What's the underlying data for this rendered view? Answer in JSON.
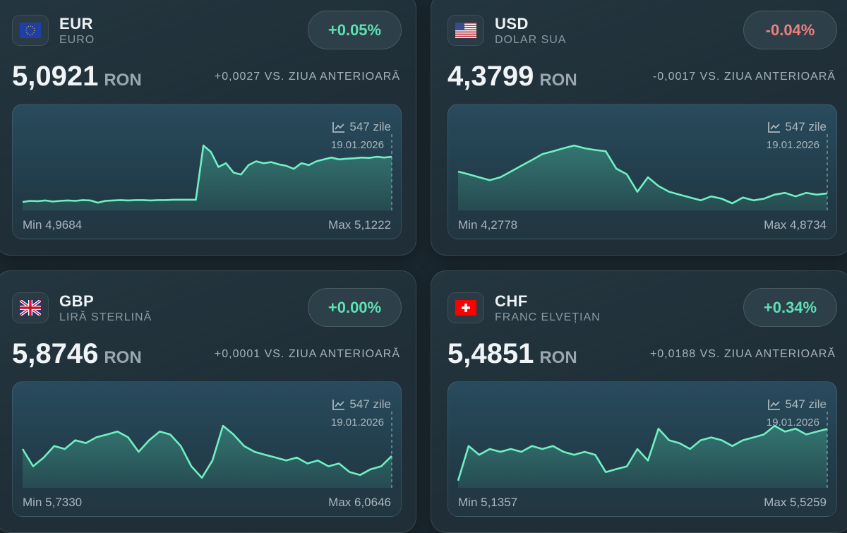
{
  "cards": [
    {
      "code": "EUR",
      "name": "Euro",
      "flag": "eu-flag",
      "change_pct": "+0.05%",
      "trend": "up",
      "price": "5,0921",
      "currency": "RON",
      "delta": "+0,0027 VS. ZIUA ANTERIOARĂ",
      "days": "547 zile",
      "date": "19.01.2026",
      "min": "Min 4,9684",
      "max": "Max 5,1222"
    },
    {
      "code": "USD",
      "name": "Dolar SUA",
      "flag": "us-flag",
      "change_pct": "-0.04%",
      "trend": "down",
      "price": "4,3799",
      "currency": "RON",
      "delta": "-0,0017 VS. ZIUA ANTERIOARĂ",
      "days": "547 zile",
      "date": "19.01.2026",
      "min": "Min 4,2778",
      "max": "Max 4,8734"
    },
    {
      "code": "GBP",
      "name": "Liră sterlină",
      "flag": "uk-flag",
      "change_pct": "+0.00%",
      "trend": "up",
      "price": "5,8746",
      "currency": "RON",
      "delta": "+0,0001 VS. ZIUA ANTERIOARĂ",
      "days": "547 zile",
      "date": "19.01.2026",
      "min": "Min 5,7330",
      "max": "Max 6,0646"
    },
    {
      "code": "CHF",
      "name": "Franc elvețian",
      "flag": "ch-flag",
      "change_pct": "+0.34%",
      "trend": "up",
      "price": "5,4851",
      "currency": "RON",
      "delta": "+0,0188 VS. ZIUA ANTERIOARĂ",
      "days": "547 zile",
      "date": "19.01.2026",
      "min": "Min 5,1357",
      "max": "Max 5,5259"
    }
  ],
  "colors": {
    "up": "#5ee0b5",
    "down": "#f07f7f",
    "line": "#6ff0c4"
  },
  "chart_data": [
    {
      "type": "area",
      "series": [
        {
          "values": [
            4.972,
            4.975,
            4.974,
            4.976,
            4.973,
            4.975,
            4.976,
            4.975,
            4.977,
            4.976,
            4.97,
            4.975,
            4.976,
            4.977,
            4.976,
            4.977,
            4.977,
            4.976,
            4.977,
            4.977,
            4.978,
            4.978,
            4.978,
            4.978,
            5.122,
            5.105,
            5.065,
            5.075,
            5.05,
            5.045,
            5.07,
            5.08,
            5.075,
            5.078,
            5.072,
            5.068,
            5.06,
            5.075,
            5.07,
            5.08,
            5.085,
            5.09,
            5.085,
            5.087,
            5.088,
            5.09,
            5.089,
            5.092,
            5.09,
            5.092
          ]
        }
      ],
      "ylim": [
        4.9684,
        5.1222
      ]
    },
    {
      "type": "area",
      "series": [
        {
          "values": [
            4.605,
            4.576,
            4.546,
            4.516,
            4.546,
            4.605,
            4.665,
            4.724,
            4.784,
            4.814,
            4.844,
            4.873,
            4.844,
            4.826,
            4.814,
            4.635,
            4.576,
            4.397,
            4.546,
            4.456,
            4.397,
            4.367,
            4.337,
            4.308,
            4.349,
            4.325,
            4.278,
            4.337,
            4.308,
            4.325,
            4.367,
            4.385,
            4.349,
            4.385,
            4.367,
            4.38
          ]
        }
      ],
      "ylim": [
        4.2778,
        4.8734
      ]
    },
    {
      "type": "area",
      "series": [
        {
          "values": [
            5.915,
            5.816,
            5.866,
            5.932,
            5.915,
            5.965,
            5.949,
            5.982,
            5.998,
            6.015,
            5.982,
            5.899,
            5.965,
            6.015,
            5.998,
            5.932,
            5.816,
            5.75,
            5.849,
            6.048,
            5.998,
            5.932,
            5.899,
            5.882,
            5.866,
            5.849,
            5.866,
            5.832,
            5.849,
            5.816,
            5.832,
            5.783,
            5.766,
            5.799,
            5.816,
            5.875
          ]
        }
      ],
      "ylim": [
        5.733,
        6.0646
      ]
    },
    {
      "type": "area",
      "series": [
        {
          "values": [
            5.136,
            5.37,
            5.311,
            5.35,
            5.331,
            5.35,
            5.331,
            5.37,
            5.35,
            5.37,
            5.331,
            5.311,
            5.331,
            5.311,
            5.194,
            5.214,
            5.233,
            5.35,
            5.272,
            5.487,
            5.409,
            5.389,
            5.35,
            5.409,
            5.428,
            5.409,
            5.37,
            5.409,
            5.428,
            5.448,
            5.506,
            5.467,
            5.487,
            5.448,
            5.467,
            5.485
          ]
        }
      ],
      "ylim": [
        5.1357,
        5.5259
      ]
    }
  ]
}
